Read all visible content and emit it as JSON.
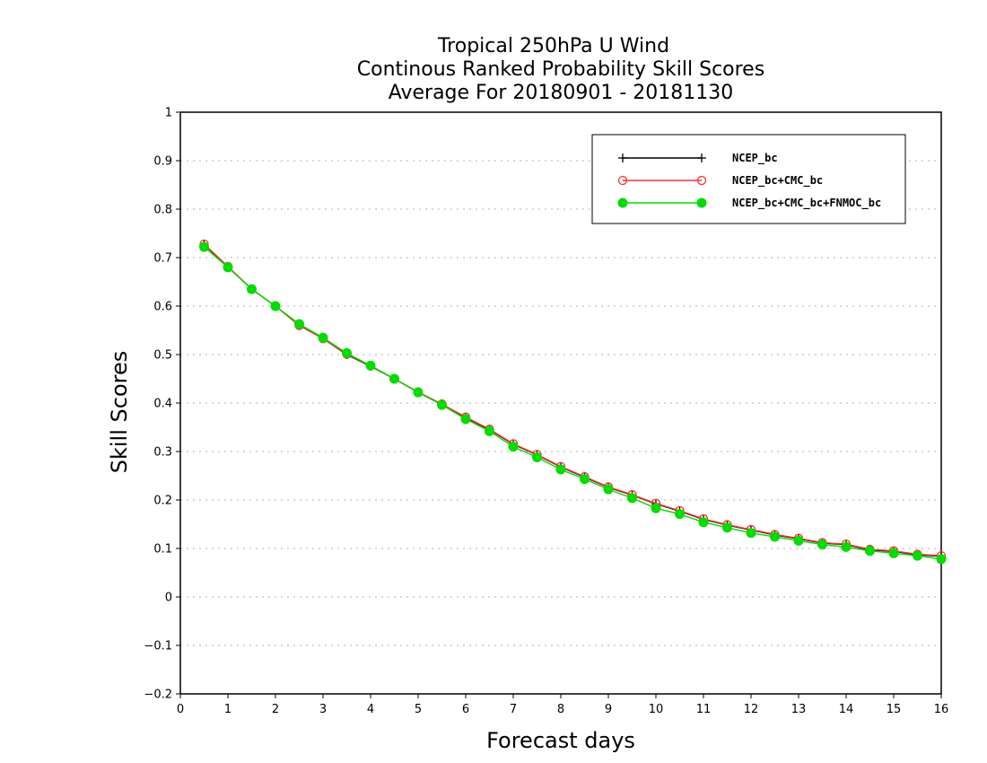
{
  "chart_data": {
    "type": "line",
    "title": [
      "Tropical 250hPa U Wind",
      "Continous Ranked Probability Skill Scores",
      "Average For 20180901 - 20181130"
    ],
    "xlabel": "Forecast days",
    "ylabel": "Skill Scores",
    "xlim": [
      0,
      16
    ],
    "ylim": [
      -0.2,
      1
    ],
    "xticks": [
      0,
      1,
      2,
      3,
      4,
      5,
      6,
      7,
      8,
      9,
      10,
      11,
      12,
      13,
      14,
      15,
      16
    ],
    "xtick_labels": [
      "0",
      "1",
      "2",
      "3",
      "4",
      "5",
      "6",
      "7",
      "8",
      "9",
      "10",
      "11",
      "12",
      "13",
      "14",
      "15",
      "16"
    ],
    "yticks": [
      -0.2,
      -0.1,
      0,
      0.1,
      0.2,
      0.3,
      0.4,
      0.5,
      0.6,
      0.7,
      0.8,
      0.9,
      1
    ],
    "ytick_labels": [
      "−0.2",
      "−0.1",
      "0",
      "0.1",
      "0.2",
      "0.3",
      "0.4",
      "0.5",
      "0.6",
      "0.7",
      "0.8",
      "0.9",
      "1"
    ],
    "grid": "horizontal dotted",
    "legend_position": "top-right",
    "x": [
      0.5,
      1,
      1.5,
      2,
      2.5,
      3,
      3.5,
      4,
      4.5,
      5,
      5.5,
      6,
      6.5,
      7,
      7.5,
      8,
      8.5,
      9,
      9.5,
      10,
      10.5,
      11,
      11.5,
      12,
      12.5,
      13,
      13.5,
      14,
      14.5,
      15,
      15.5,
      16
    ],
    "series": [
      {
        "name": "NCEP_bc",
        "color": "#000000",
        "marker": "plus",
        "values": [
          0.727,
          0.681,
          0.635,
          0.6,
          0.56,
          0.533,
          0.5,
          0.476,
          0.45,
          0.422,
          0.397,
          0.37,
          0.345,
          0.315,
          0.293,
          0.268,
          0.247,
          0.226,
          0.21,
          0.192,
          0.177,
          0.16,
          0.148,
          0.138,
          0.128,
          0.12,
          0.111,
          0.108,
          0.097,
          0.094,
          0.087,
          0.084
        ]
      },
      {
        "name": "NCEP_bc+CMC_bc",
        "color": "#ff3030",
        "marker": "open-circle",
        "values": [
          0.728,
          0.682,
          0.635,
          0.6,
          0.56,
          0.533,
          0.501,
          0.477,
          0.45,
          0.423,
          0.398,
          0.371,
          0.346,
          0.316,
          0.294,
          0.269,
          0.248,
          0.227,
          0.211,
          0.193,
          0.178,
          0.161,
          0.149,
          0.139,
          0.129,
          0.121,
          0.112,
          0.109,
          0.098,
          0.095,
          0.088,
          0.085
        ]
      },
      {
        "name": "NCEP_bc+CMC_bc+FNMOC_bc",
        "color": "#00dd00",
        "marker": "filled-circle",
        "values": [
          0.722,
          0.68,
          0.635,
          0.6,
          0.563,
          0.535,
          0.503,
          0.477,
          0.45,
          0.422,
          0.396,
          0.367,
          0.342,
          0.31,
          0.288,
          0.263,
          0.243,
          0.222,
          0.204,
          0.183,
          0.171,
          0.154,
          0.143,
          0.132,
          0.124,
          0.116,
          0.108,
          0.103,
          0.095,
          0.09,
          0.085,
          0.078
        ]
      }
    ]
  }
}
